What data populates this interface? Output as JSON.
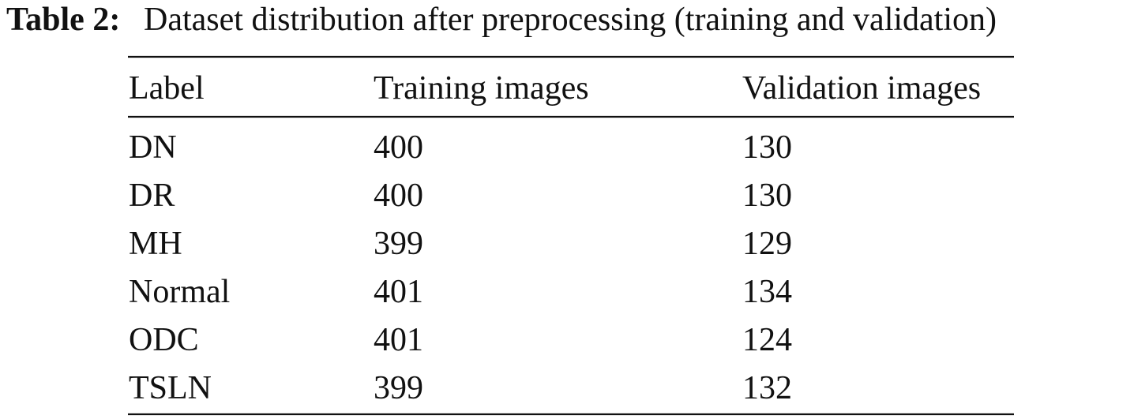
{
  "caption": {
    "label": "Table 2:",
    "text": "Dataset distribution after preprocessing (training and validation)"
  },
  "table": {
    "header": [
      "Label",
      "Training images",
      "Validation images"
    ],
    "rows": [
      [
        "DN",
        400,
        130
      ],
      [
        "DR",
        400,
        130
      ],
      [
        "MH",
        399,
        129
      ],
      [
        "Normal",
        401,
        134
      ],
      [
        "ODC",
        401,
        124
      ],
      [
        "TSLN",
        399,
        132
      ]
    ]
  }
}
